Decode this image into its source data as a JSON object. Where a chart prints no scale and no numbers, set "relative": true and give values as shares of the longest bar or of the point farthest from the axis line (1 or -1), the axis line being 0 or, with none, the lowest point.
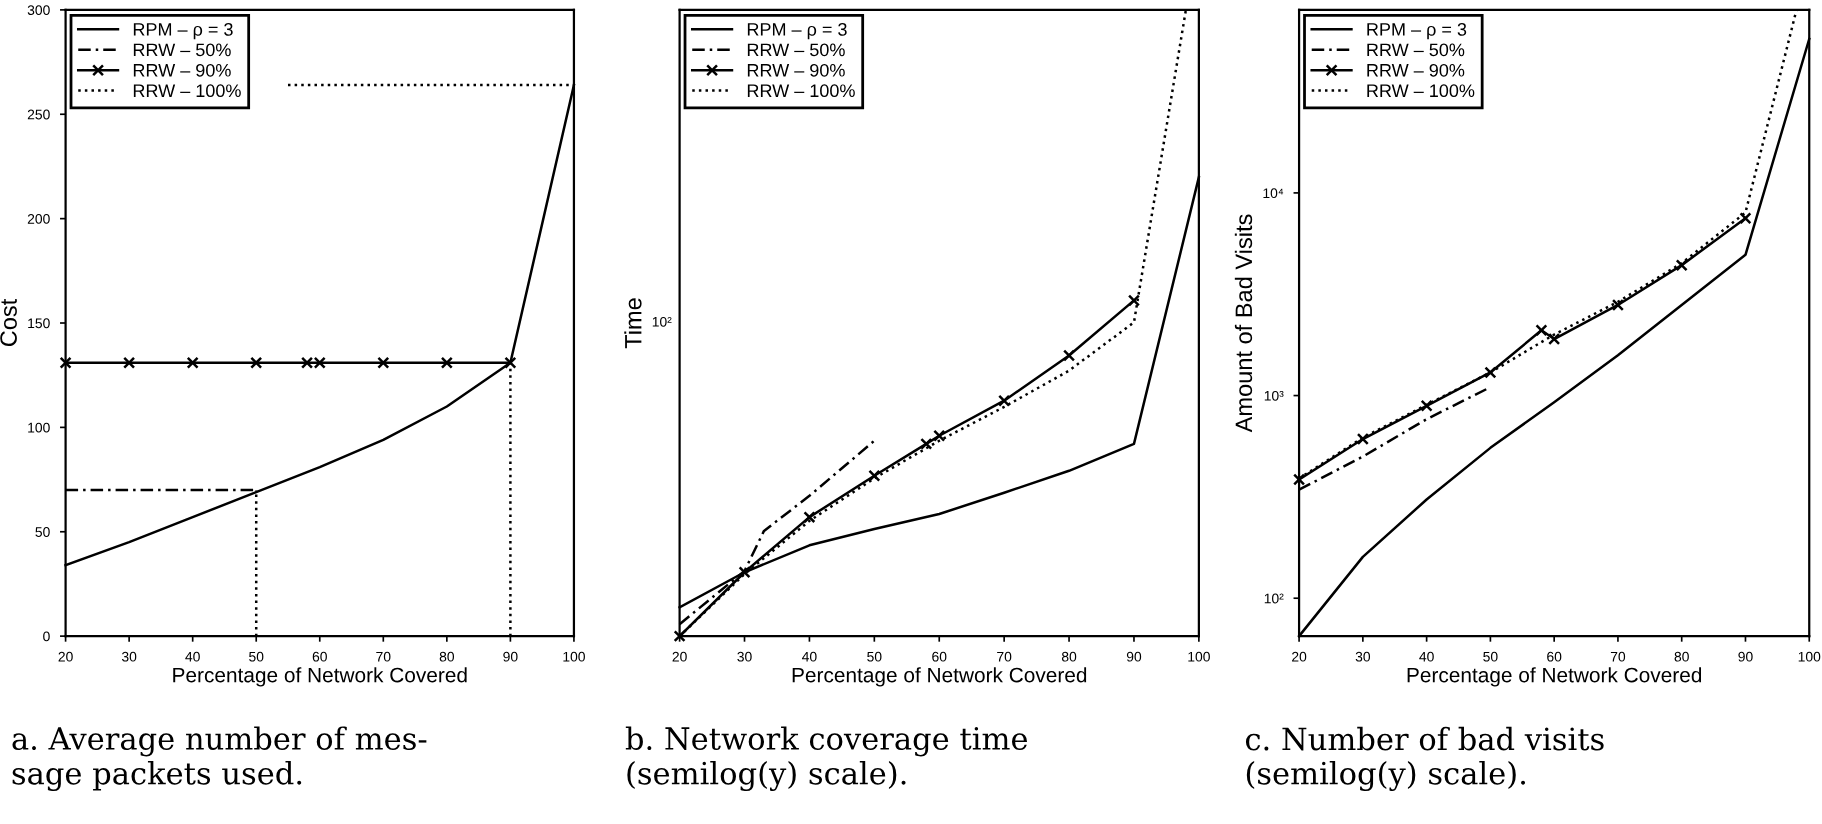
{
  "chart_data": [
    {
      "type": "line",
      "xlabel": "Percentage of Network Covered",
      "ylabel": "Cost",
      "xlim": [
        20,
        100
      ],
      "xticks": [
        20,
        30,
        40,
        50,
        60,
        70,
        80,
        90,
        100
      ],
      "ylim": [
        0,
        300
      ],
      "yticks": [
        0,
        50,
        100,
        150,
        200,
        250,
        300
      ],
      "legend": "top left",
      "annotations": [
        "a. Average number of mes-\nsage packets used."
      ],
      "series": [
        {
          "name": "RPM – ρ = 3",
          "color": "#000000",
          "line_style": "solid",
          "x": [
            20,
            30,
            40,
            50,
            60,
            70,
            80,
            90,
            100
          ],
          "values": [
            34,
            45,
            57,
            69,
            81,
            94,
            110,
            131,
            264
          ]
        },
        {
          "name": "RRW – 50%",
          "color": "#000000",
          "line_style": "dashed",
          "x": [
            20,
            30,
            40,
            50
          ],
          "values": [
            70,
            70,
            70,
            70
          ]
        },
        {
          "name": "RRW – 90%",
          "color": "#000000",
          "line_style": "solid",
          "marker": "cross",
          "x": [
            20,
            30,
            40,
            50,
            58,
            60,
            70,
            80,
            90
          ],
          "values": [
            131,
            131,
            131,
            131,
            131,
            131,
            131,
            131,
            131
          ]
        },
        {
          "name": "RRW – 100%",
          "color": "#000000",
          "line_style": "dotted",
          "x": [
            55,
            100
          ],
          "values": [
            264,
            264
          ]
        },
        {
          "color": "#000000",
          "line_style": "dotted",
          "x": [
            50,
            50
          ],
          "values": [
            0,
            70
          ]
        },
        {
          "color": "#000000",
          "line_style": "dotted",
          "x": [
            90,
            90
          ],
          "values": [
            0,
            131
          ]
        }
      ]
    },
    {
      "type": "line",
      "relative": true,
      "xlabel": "Percentage of Network Covered",
      "ylabel": "Time",
      "xlim": [
        20,
        100
      ],
      "xticks": [
        20,
        30,
        40,
        50,
        60,
        70,
        80,
        90,
        100
      ],
      "legend": "top left",
      "annotations": [
        "b. Network coverage time\n(semilog(y) scale).",
        "10²"
      ],
      "series": [
        {
          "name": "RPM – ρ = 3",
          "color": "#000000",
          "line_style": "solid",
          "x": [
            20,
            30,
            40,
            50,
            60,
            70,
            80,
            90,
            100
          ],
          "values": [
            0.046,
            0.102,
            0.145,
            0.171,
            0.195,
            0.229,
            0.264,
            0.307,
            0.733
          ]
        },
        {
          "name": "RRW – 50%",
          "color": "#000000",
          "line_style": "dashed",
          "x": [
            20,
            30,
            33,
            40,
            50
          ],
          "values": [
            0.019,
            0.104,
            0.168,
            0.224,
            0.312
          ]
        },
        {
          "name": "RRW – 90%",
          "color": "#000000",
          "line_style": "solid",
          "marker": "cross",
          "x": [
            20,
            30,
            40,
            50,
            58,
            60,
            70,
            80,
            90
          ],
          "values": [
            0,
            0.102,
            0.19,
            0.256,
            0.307,
            0.32,
            0.376,
            0.448,
            0.536
          ]
        },
        {
          "name": "RRW – 100%",
          "color": "#000000",
          "line_style": "dotted",
          "x": [
            20,
            30,
            40,
            50,
            60,
            70,
            80,
            90,
            98
          ],
          "values": [
            0,
            0.099,
            0.184,
            0.252,
            0.312,
            0.366,
            0.424,
            0.501,
            1
          ]
        }
      ]
    },
    {
      "type": "line",
      "log": true,
      "xlabel": "Percentage of Network Covered",
      "ylabel": "Amount of Bad Visits",
      "xlim": [
        20,
        100
      ],
      "xticks": [
        20,
        30,
        40,
        50,
        60,
        70,
        80,
        90,
        100
      ],
      "ylim": [
        65,
        80000
      ],
      "yticks": [
        {
          "value": 100,
          "label": "10²"
        },
        {
          "value": 1000,
          "label": "10³"
        },
        {
          "value": 10000,
          "label": "10⁴"
        }
      ],
      "legend": "top left",
      "annotations": [
        "c. Number of bad visits\n(semilog(y) scale)."
      ],
      "series": [
        {
          "name": "RPM – ρ = 3",
          "color": "#000000",
          "line_style": "solid",
          "x": [
            20,
            30,
            40,
            50,
            60,
            70,
            80,
            90,
            100
          ],
          "values": [
            65,
            160,
            307,
            552,
            927,
            1580,
            2800,
            4950,
            57500
          ]
        },
        {
          "name": "RRW – 50%",
          "color": "#000000",
          "line_style": "dashed",
          "x": [
            20,
            30,
            40,
            50
          ],
          "values": [
            343,
            500,
            765,
            1100
          ]
        },
        {
          "name": "RRW – 90%",
          "color": "#000000",
          "line_style": "solid",
          "marker": "cross",
          "x": [
            20,
            30,
            40,
            50,
            58,
            60,
            70,
            80,
            90
          ],
          "values": [
            385,
            610,
            890,
            1300,
            2100,
            1900,
            2800,
            4400,
            7500
          ]
        },
        {
          "name": "RRW – 100%",
          "color": "#000000",
          "line_style": "dotted",
          "x": [
            20,
            30,
            40,
            50,
            60,
            70,
            80,
            90,
            98
          ],
          "values": [
            390,
            620,
            900,
            1300,
            2000,
            2900,
            4500,
            8000,
            80000
          ]
        }
      ]
    }
  ]
}
